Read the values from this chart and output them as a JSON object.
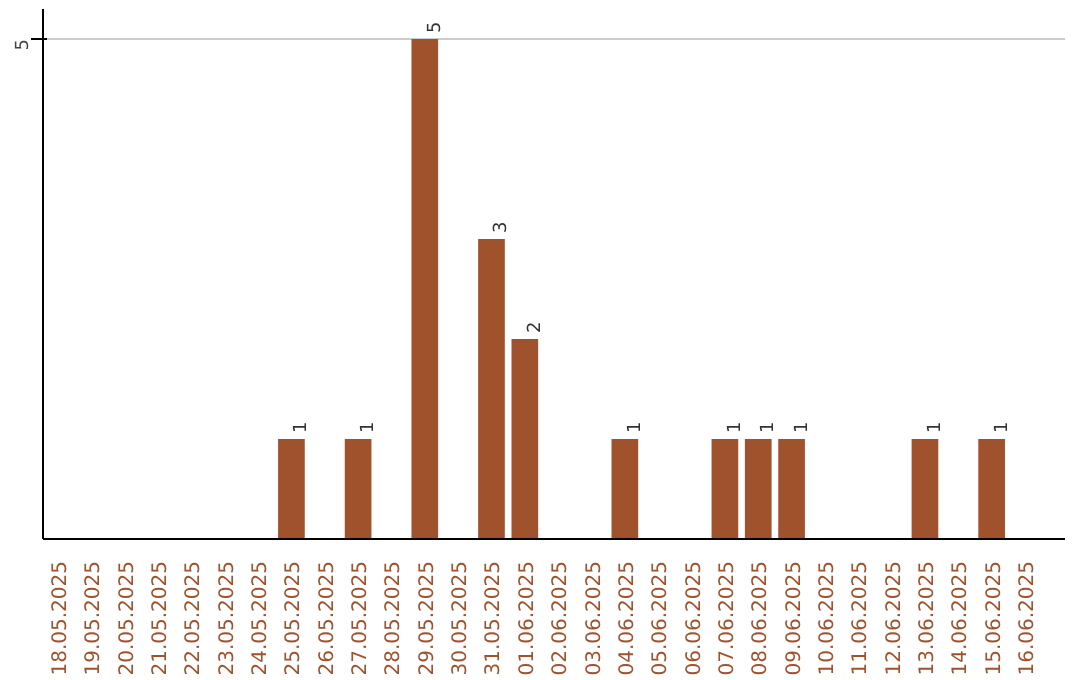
{
  "chart_data": {
    "type": "bar",
    "categories": [
      "18.05.2025",
      "19.05.2025",
      "20.05.2025",
      "21.05.2025",
      "22.05.2025",
      "23.05.2025",
      "24.05.2025",
      "25.05.2025",
      "26.05.2025",
      "27.05.2025",
      "28.05.2025",
      "29.05.2025",
      "30.05.2025",
      "31.05.2025",
      "01.06.2025",
      "02.06.2025",
      "03.06.2025",
      "04.06.2025",
      "05.06.2025",
      "06.06.2025",
      "07.06.2025",
      "08.06.2025",
      "09.06.2025",
      "10.06.2025",
      "11.06.2025",
      "12.06.2025",
      "13.06.2025",
      "14.06.2025",
      "15.06.2025",
      "16.06.2025"
    ],
    "values": [
      0,
      0,
      0,
      0,
      0,
      0,
      0,
      1,
      0,
      1,
      0,
      5,
      0,
      3,
      2,
      0,
      0,
      1,
      0,
      0,
      1,
      1,
      1,
      0,
      0,
      0,
      1,
      0,
      1,
      0
    ],
    "value_labels": [
      null,
      null,
      null,
      null,
      null,
      null,
      null,
      "1",
      null,
      "1",
      null,
      "5",
      null,
      "3",
      "2",
      null,
      null,
      "1",
      null,
      null,
      "1",
      "1",
      "1",
      null,
      null,
      null,
      "1",
      null,
      "1",
      null
    ],
    "color": "#a0522d",
    "ylim": [
      0,
      5.3
    ],
    "yticks": [
      5
    ],
    "grid": "y"
  }
}
